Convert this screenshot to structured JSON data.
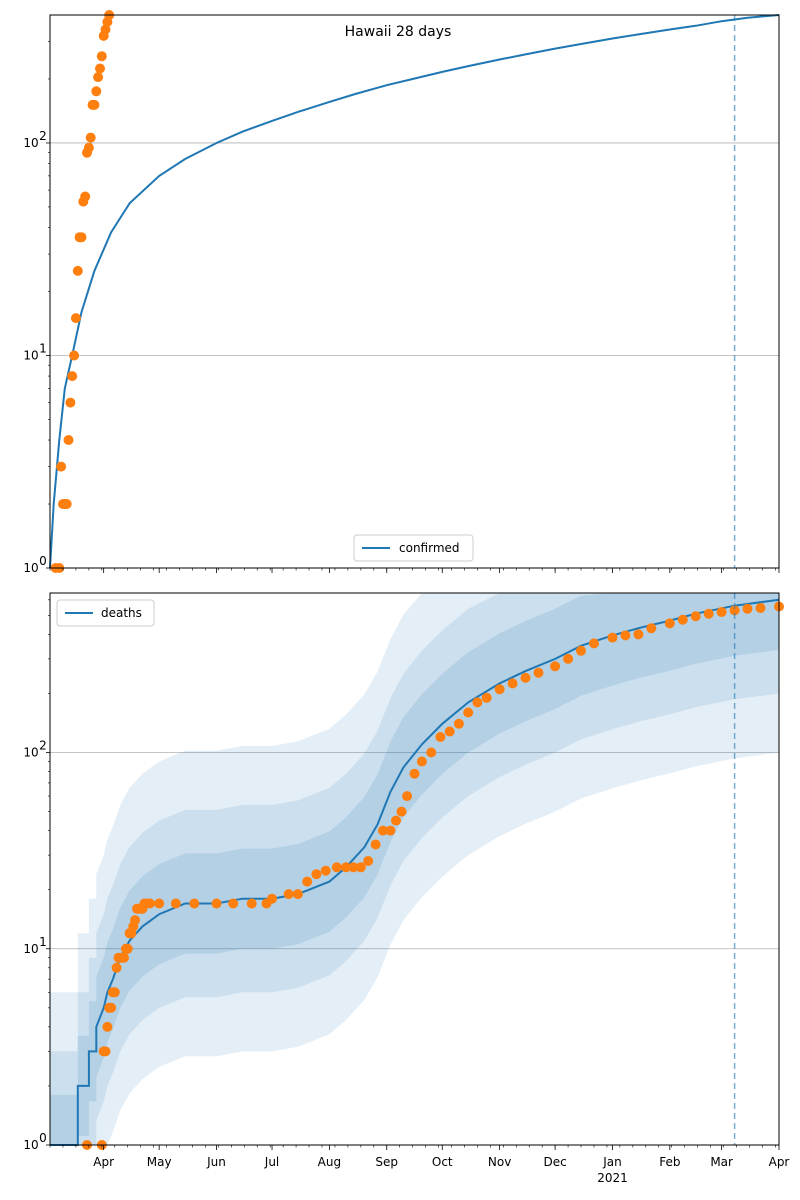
{
  "chart_data": [
    {
      "type": "line",
      "title": "Hawaii 28 days",
      "yscale": "log",
      "ylim": [
        1,
        400
      ],
      "xlim": [
        "2020-03-03",
        "2021-04-01"
      ],
      "yticks": [
        {
          "value": 1,
          "base": "10",
          "exp": "0"
        },
        {
          "value": 10,
          "base": "10",
          "exp": "1"
        },
        {
          "value": 100,
          "base": "10",
          "exp": "2"
        }
      ],
      "grid": "y-major",
      "legend_position": "lower center",
      "vline": "2021-03-08",
      "series": [
        {
          "name": "confirmed",
          "kind": "line",
          "color": "#1f77b4",
          "x": [
            "2020-03-03",
            "2020-03-05",
            "2020-03-08",
            "2020-03-11",
            "2020-03-15",
            "2020-03-20",
            "2020-03-27",
            "2020-04-05",
            "2020-04-15",
            "2020-05-01",
            "2020-05-15",
            "2020-06-01",
            "2020-06-15",
            "2020-07-01",
            "2020-07-15",
            "2020-08-01",
            "2020-08-15",
            "2020-09-01",
            "2020-09-15",
            "2020-10-01",
            "2020-10-15",
            "2020-11-01",
            "2020-11-15",
            "2020-12-01",
            "2020-12-15",
            "2021-01-01",
            "2021-01-15",
            "2021-02-01",
            "2021-02-15",
            "2021-03-01",
            "2021-03-15",
            "2021-04-01"
          ],
          "values": [
            1,
            2,
            4,
            7,
            10,
            16,
            25,
            38,
            52,
            70,
            84,
            100,
            113,
            127,
            140,
            156,
            170,
            187,
            200,
            216,
            230,
            247,
            261,
            278,
            292,
            310,
            324,
            342,
            356,
            374,
            388,
            400
          ]
        },
        {
          "name": "",
          "kind": "scatter",
          "color": "#ff7f0e",
          "x": [
            "2020-03-06",
            "2020-03-08",
            "2020-03-09",
            "2020-03-10",
            "2020-03-11",
            "2020-03-12",
            "2020-03-13",
            "2020-03-14",
            "2020-03-15",
            "2020-03-16",
            "2020-03-17",
            "2020-03-18",
            "2020-03-19",
            "2020-03-20",
            "2020-03-21",
            "2020-03-22",
            "2020-03-23",
            "2020-03-24",
            "2020-03-25",
            "2020-03-26",
            "2020-03-27",
            "2020-03-28",
            "2020-03-29",
            "2020-03-30",
            "2020-03-31",
            "2020-04-01",
            "2020-04-02",
            "2020-04-03",
            "2020-04-04"
          ],
          "values": [
            1,
            1,
            3,
            2,
            2,
            2,
            4,
            6,
            8,
            10,
            15,
            25,
            36,
            36,
            53,
            56,
            90,
            95,
            106,
            151,
            151,
            175,
            204,
            224,
            256,
            319,
            342,
            371,
            400
          ]
        }
      ]
    },
    {
      "type": "line",
      "yscale": "log",
      "ylim": [
        1,
        650
      ],
      "xlim": [
        "2020-03-03",
        "2021-04-01"
      ],
      "yticks": [
        {
          "value": 1,
          "base": "10",
          "exp": "0"
        },
        {
          "value": 10,
          "base": "10",
          "exp": "1"
        },
        {
          "value": 100,
          "base": "10",
          "exp": "2"
        }
      ],
      "grid": "y-major",
      "legend_position": "upper left",
      "vline": "2021-03-08",
      "xticks": [
        {
          "date": "2020-04-01",
          "label": "Apr"
        },
        {
          "date": "2020-05-01",
          "label": "May"
        },
        {
          "date": "2020-06-01",
          "label": "Jun"
        },
        {
          "date": "2020-07-01",
          "label": "Jul"
        },
        {
          "date": "2020-08-01",
          "label": "Aug"
        },
        {
          "date": "2020-09-01",
          "label": "Sep"
        },
        {
          "date": "2020-10-01",
          "label": "Oct"
        },
        {
          "date": "2020-11-01",
          "label": "Nov"
        },
        {
          "date": "2020-12-01",
          "label": "Dec"
        },
        {
          "date": "2021-01-01",
          "label": "Jan",
          "sub": "2021"
        },
        {
          "date": "2021-02-01",
          "label": "Feb"
        },
        {
          "date": "2021-03-01",
          "label": "Mar"
        },
        {
          "date": "2021-04-01",
          "label": "Apr"
        }
      ],
      "bands": [
        {
          "factor": 6,
          "opacity": 0.12,
          "color": "#1f77b4"
        },
        {
          "factor": 3,
          "opacity": 0.12,
          "color": "#1f77b4"
        },
        {
          "factor": 1.8,
          "opacity": 0.14,
          "color": "#1f77b4"
        }
      ],
      "series": [
        {
          "name": "deaths",
          "kind": "line",
          "color": "#1f77b4",
          "x": [
            "2020-03-03",
            "2020-03-18",
            "2020-03-18",
            "2020-03-24",
            "2020-03-24",
            "2020-03-28",
            "2020-03-28",
            "2020-04-01",
            "2020-04-03",
            "2020-04-06",
            "2020-04-10",
            "2020-04-15",
            "2020-04-22",
            "2020-05-01",
            "2020-05-15",
            "2020-06-01",
            "2020-06-15",
            "2020-07-01",
            "2020-07-15",
            "2020-08-01",
            "2020-08-10",
            "2020-08-20",
            "2020-08-27",
            "2020-09-03",
            "2020-09-10",
            "2020-09-20",
            "2020-10-01",
            "2020-10-15",
            "2020-11-01",
            "2020-11-15",
            "2020-12-01",
            "2020-12-15",
            "2021-01-01",
            "2021-01-15",
            "2021-02-01",
            "2021-02-15",
            "2021-03-08",
            "2021-04-01"
          ],
          "values": [
            1,
            1,
            2,
            2,
            3,
            3,
            4,
            5,
            6,
            7,
            9,
            11,
            13,
            15,
            17,
            17,
            18,
            18,
            19,
            22,
            26,
            33,
            43,
            63,
            84,
            110,
            140,
            180,
            225,
            260,
            300,
            350,
            395,
            430,
            470,
            510,
            560,
            600
          ]
        },
        {
          "name": "",
          "kind": "scatter",
          "color": "#ff7f0e",
          "x": [
            "2020-03-23",
            "2020-03-31",
            "2020-04-01",
            "2020-04-02",
            "2020-04-03",
            "2020-04-04",
            "2020-04-05",
            "2020-04-06",
            "2020-04-07",
            "2020-04-08",
            "2020-04-09",
            "2020-04-10",
            "2020-04-11",
            "2020-04-12",
            "2020-04-13",
            "2020-04-14",
            "2020-04-15",
            "2020-04-16",
            "2020-04-17",
            "2020-04-18",
            "2020-04-19",
            "2020-04-20",
            "2020-04-21",
            "2020-04-22",
            "2020-04-23",
            "2020-04-24",
            "2020-04-26",
            "2020-05-01",
            "2020-05-10",
            "2020-05-20",
            "2020-06-01",
            "2020-06-10",
            "2020-06-20",
            "2020-06-28",
            "2020-07-01",
            "2020-07-10",
            "2020-07-15",
            "2020-07-20",
            "2020-07-25",
            "2020-07-30",
            "2020-08-05",
            "2020-08-10",
            "2020-08-14",
            "2020-08-18",
            "2020-08-22",
            "2020-08-26",
            "2020-08-30",
            "2020-09-03",
            "2020-09-06",
            "2020-09-09",
            "2020-09-12",
            "2020-09-16",
            "2020-09-20",
            "2020-09-25",
            "2020-09-30",
            "2020-10-05",
            "2020-10-10",
            "2020-10-15",
            "2020-10-20",
            "2020-10-25",
            "2020-11-01",
            "2020-11-08",
            "2020-11-15",
            "2020-11-22",
            "2020-12-01",
            "2020-12-08",
            "2020-12-15",
            "2020-12-22",
            "2021-01-01",
            "2021-01-08",
            "2021-01-15",
            "2021-01-22",
            "2021-02-01",
            "2021-02-08",
            "2021-02-15",
            "2021-02-22",
            "2021-03-01",
            "2021-03-08",
            "2021-03-15",
            "2021-03-22",
            "2021-04-01"
          ],
          "values": [
            1,
            1,
            3,
            3,
            4,
            5,
            5,
            6,
            6,
            8,
            9,
            9,
            9,
            9,
            10,
            10,
            12,
            12,
            13,
            14,
            16,
            16,
            16,
            16,
            17,
            17,
            17,
            17,
            17,
            17,
            17,
            17,
            17,
            17,
            18,
            19,
            19,
            22,
            24,
            25,
            26,
            26,
            26,
            26,
            28,
            34,
            40,
            40,
            45,
            50,
            60,
            78,
            90,
            100,
            120,
            128,
            140,
            160,
            180,
            190,
            210,
            225,
            240,
            255,
            275,
            300,
            330,
            360,
            385,
            395,
            400,
            430,
            455,
            475,
            495,
            510,
            520,
            530,
            540,
            545,
            555
          ]
        }
      ]
    }
  ]
}
